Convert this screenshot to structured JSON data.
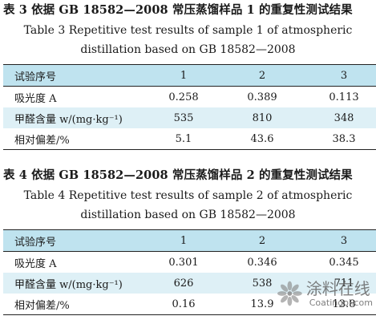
{
  "table3": {
    "title_cn": "表 3   依据 GB 18582—2008 常压蒸馏样品 1 的重复性测试结果",
    "title_en_line1": "Table 3   Repetitive test results of sample 1 of atmospheric",
    "title_en_line2": "distillation based on GB 18582—2008",
    "header": [
      "试验序号",
      "1",
      "2",
      "3"
    ],
    "rows": [
      [
        "吸光度 A",
        "0.258",
        "0.389",
        "0.113"
      ],
      [
        "甲醛含量 w/(mg·kg⁻¹)",
        "535",
        "810",
        "348"
      ],
      [
        "相对偏差/%",
        "5.1",
        "43.6",
        "38.3"
      ]
    ]
  },
  "table4": {
    "title_cn": "表 4   依据 GB 18582—2008 常压蒸馏样品 2 的重复性测试结果",
    "title_en_line1": "Table 4   Repetitive test results of sample 2 of atmospheric",
    "title_en_line2": "distillation based on GB 18582—2008",
    "header": [
      "试验序号",
      "1",
      "2",
      "3"
    ],
    "rows": [
      [
        "吸光度 A",
        "0.301",
        "0.346",
        "0.345"
      ],
      [
        "甲醛含量 w/(mg·kg⁻¹)",
        "626",
        "538",
        "711"
      ],
      [
        "相对偏差/%",
        "0.16",
        "13.9",
        "13.8"
      ]
    ]
  },
  "watermark": {
    "text_cn": "涂料在线",
    "text_en": "Coatingol.com"
  },
  "colors": {
    "header_fill": "#bfe3ef",
    "row_fill": "#def0f6",
    "rule": "#222222"
  }
}
